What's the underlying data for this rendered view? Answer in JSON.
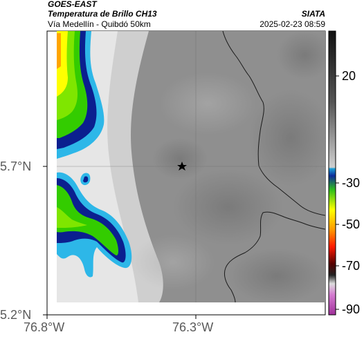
{
  "header": {
    "satellite": "GOES-EAST",
    "product": "Temperatura de Brillo CH13",
    "route": "Vía Medellín - Quibdó 50km",
    "agency": "SIATA",
    "timestamp": "2025-02-23 08:59"
  },
  "axes": {
    "lat_ticks": [
      "5.7°N",
      "5.2°N"
    ],
    "lon_ticks": [
      "76.8°W",
      "76.3°W"
    ]
  },
  "colorbar": {
    "labels": [
      "20",
      "-30",
      "-50",
      "-70",
      "-90"
    ],
    "colors": {
      "cold_magenta": "#c44fbf",
      "dark_red": "#8b0000",
      "red": "#ff2a00",
      "orange": "#ff8c00",
      "yellow": "#ffff00",
      "green": "#33cc00",
      "navy": "#0b1f8f",
      "cyan": "#2db7e8",
      "warm_gray": "#808080"
    }
  },
  "markers": {
    "site_icon": "star-icon"
  }
}
